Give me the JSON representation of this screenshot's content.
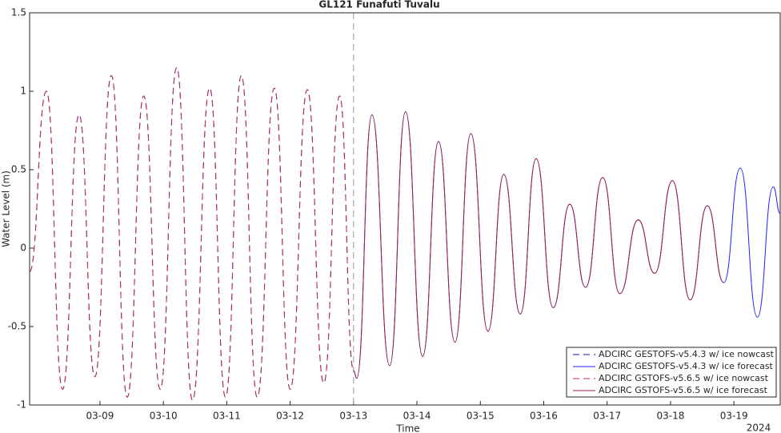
{
  "chart_data": {
    "type": "line",
    "title": "GL121 Funafuti Tuvalu",
    "xlabel": "Time",
    "ylabel": "Water Level (m)",
    "x_annotation": "2024",
    "xlim": [
      7.89,
      19.73
    ],
    "ylim": [
      -1,
      1.5
    ],
    "xticks": [
      {
        "value": 9,
        "label": "03-09"
      },
      {
        "value": 10,
        "label": "03-10"
      },
      {
        "value": 11,
        "label": "03-11"
      },
      {
        "value": 12,
        "label": "03-12"
      },
      {
        "value": 13,
        "label": "03-13"
      },
      {
        "value": 14,
        "label": "03-14"
      },
      {
        "value": 15,
        "label": "03-15"
      },
      {
        "value": 16,
        "label": "03-16"
      },
      {
        "value": 17,
        "label": "03-17"
      },
      {
        "value": 18,
        "label": "03-18"
      },
      {
        "value": 19,
        "label": "03-19"
      }
    ],
    "yticks": [
      -1,
      -0.5,
      0,
      0.5,
      1,
      1.5
    ],
    "vline_x": 13,
    "grid": false,
    "legend": "lower right",
    "series": [
      {
        "name": "ADCIRC GESTOFS-v5.4.3 w/ ice nowcast",
        "color": "#1a1aa8",
        "dashed": true,
        "x": [
          7.89,
          8.155,
          8.41,
          8.67,
          8.92,
          9.18,
          9.43,
          9.69,
          9.95,
          10.21,
          10.46,
          10.73,
          10.98,
          11.23,
          11.48,
          11.75,
          12.0,
          12.27,
          12.53,
          12.78,
          13.0
        ],
        "values": [
          -0.15,
          1.0,
          -0.9,
          0.85,
          -0.82,
          1.1,
          -0.95,
          0.97,
          -0.9,
          1.15,
          -0.97,
          1.02,
          -0.95,
          1.1,
          -0.95,
          1.02,
          -0.9,
          1.01,
          -0.86,
          0.97,
          -0.78
        ]
      },
      {
        "name": "ADCIRC GESTOFS-v5.4.3 w/ ice forecast",
        "color": "#2020ff",
        "dashed": false,
        "x": [
          13.0,
          13.05,
          13.29,
          13.57,
          13.82,
          14.09,
          14.34,
          14.6,
          14.85,
          15.12,
          15.37,
          15.63,
          15.88,
          16.15,
          16.41,
          16.66,
          16.93,
          17.2,
          17.49,
          17.75,
          18.03,
          18.31,
          18.58,
          18.84,
          19.1,
          19.37,
          19.62,
          19.73
        ],
        "values": [
          -0.78,
          -0.83,
          0.85,
          -0.75,
          0.87,
          -0.69,
          0.68,
          -0.6,
          0.73,
          -0.53,
          0.47,
          -0.42,
          0.57,
          -0.38,
          0.28,
          -0.25,
          0.45,
          -0.29,
          0.18,
          -0.16,
          0.43,
          -0.33,
          0.27,
          -0.22,
          0.51,
          -0.44,
          0.39,
          0.22
        ]
      },
      {
        "name": "ADCIRC GSTOFS-v5.6.5 w/ ice nowcast",
        "color": "#c0285a",
        "dashed": true,
        "x": [
          7.89,
          8.155,
          8.41,
          8.67,
          8.92,
          9.18,
          9.43,
          9.69,
          9.95,
          10.21,
          10.46,
          10.73,
          10.98,
          11.23,
          11.48,
          11.75,
          12.0,
          12.27,
          12.53,
          12.78,
          13.0
        ],
        "values": [
          -0.15,
          1.0,
          -0.9,
          0.85,
          -0.82,
          1.1,
          -0.95,
          0.97,
          -0.9,
          1.15,
          -0.97,
          1.02,
          -0.95,
          1.1,
          -0.95,
          1.02,
          -0.9,
          1.01,
          -0.86,
          0.97,
          -0.78
        ]
      },
      {
        "name": "ADCIRC GSTOFS-v5.6.5 w/ ice forecast",
        "color": "#a02040",
        "dashed": false,
        "x": [
          13.0,
          13.05,
          13.29,
          13.57,
          13.82,
          14.09,
          14.34,
          14.6,
          14.85,
          15.12,
          15.37,
          15.63,
          15.88,
          16.15,
          16.41,
          16.66,
          16.93,
          17.2,
          17.49,
          17.75,
          18.03,
          18.31,
          18.58,
          18.84
        ],
        "values": [
          -0.78,
          -0.83,
          0.85,
          -0.75,
          0.87,
          -0.69,
          0.68,
          -0.6,
          0.73,
          -0.53,
          0.47,
          -0.42,
          0.57,
          -0.38,
          0.28,
          -0.25,
          0.45,
          -0.29,
          0.18,
          -0.16,
          0.43,
          -0.33,
          0.27,
          -0.22
        ]
      }
    ]
  }
}
